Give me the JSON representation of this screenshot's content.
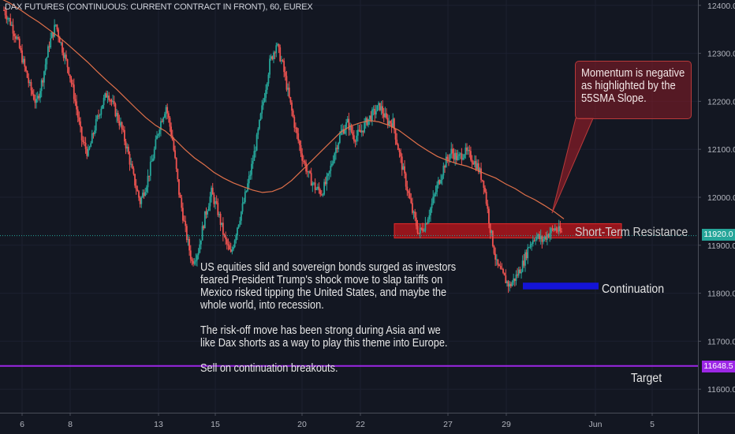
{
  "title": "DAX FUTURES (CONTINUOUS: CURRENT CONTRACT IN FRONT), 60, EUREX",
  "chart_data": {
    "type": "candlestick",
    "symbol": "DAX FUTURES (CONTINUOUS: CURRENT CONTRACT IN FRONT)",
    "interval": "60",
    "exchange": "EUREX",
    "y_axis": {
      "ticks": [
        11600.0,
        11700.0,
        11800.0,
        11900.0,
        12000.0,
        12100.0,
        12200.0,
        12300.0,
        12400.0
      ],
      "range": [
        11550,
        12415
      ],
      "position": "right"
    },
    "x_axis": {
      "ticks": [
        "6",
        "8",
        "13",
        "15",
        "20",
        "22",
        "27",
        "29",
        "Jun",
        "5"
      ]
    },
    "close_path": [
      12390,
      12365,
      12330,
      12280,
      12230,
      12195,
      12250,
      12320,
      12360,
      12310,
      12265,
      12200,
      12120,
      12090,
      12145,
      12190,
      12220,
      12185,
      12150,
      12100,
      12040,
      11990,
      12030,
      12085,
      12150,
      12190,
      12120,
      12010,
      11930,
      11865,
      11890,
      11960,
      12010,
      11970,
      11915,
      11880,
      11940,
      11990,
      12050,
      12120,
      12200,
      12280,
      12320,
      12275,
      12205,
      12140,
      12085,
      12045,
      12020,
      12010,
      12040,
      12095,
      12135,
      12155,
      12125,
      12135,
      12160,
      12175,
      12190,
      12160,
      12155,
      12090,
      12030,
      11970,
      11925,
      11945,
      11985,
      12030,
      12070,
      12095,
      12080,
      12095,
      12085,
      12065,
      12030,
      11935,
      11860,
      11835,
      11815,
      11835,
      11860,
      11900,
      11920,
      11910,
      11925,
      11935,
      11925
    ],
    "sma": {
      "name": "55SMA",
      "color": "#e0704a",
      "path": [
        12415,
        12405,
        12392,
        12378,
        12365,
        12350,
        12335,
        12318,
        12300,
        12282,
        12262,
        12243,
        12225,
        12205,
        12185,
        12166,
        12150,
        12138,
        12120,
        12100,
        12082,
        12068,
        12052,
        12040,
        12030,
        12022,
        12015,
        12010,
        12012,
        12020,
        12035,
        12055,
        12075,
        12095,
        12115,
        12135,
        12148,
        12155,
        12160,
        12157,
        12150,
        12140,
        12125,
        12110,
        12097,
        12085,
        12077,
        12070,
        12065,
        12057,
        12048,
        12040,
        12028,
        12018,
        12005,
        11995,
        11983,
        11970,
        11955
      ]
    },
    "resistance_zone": {
      "label": "Short-Term Resistance",
      "low": 11915,
      "high": 11945
    },
    "continuation_zone": {
      "label": "Continuation",
      "low": 11808,
      "high": 11822
    },
    "current_price": 11920.0,
    "target": {
      "label": "Target",
      "price": 11648.5
    }
  },
  "notes": {
    "main": "US equities slid and sovereign bonds surged as investors\nfeared President Trump's shock move to slap tariffs on\nMexico risked tipping the United States, and maybe the\nwhole world, into recession.\n\nThe risk-off move has been strong during Asia and we\nlike Dax shorts as a way to play this theme into Europe.\n\nSell on continuation breakouts.",
    "callout": "Momentum is negative\nas highlighted by the\n55SMA Slope."
  },
  "labels": {
    "resistance": "Short-Term Resistance",
    "continuation": "Continuation",
    "target": "Target"
  },
  "price_tags": {
    "current": "11920.0",
    "target": "11648.5"
  },
  "colors": {
    "background": "#131722",
    "up": "#26a69a",
    "down": "#ef5350",
    "resistance": "#c8151b",
    "continuation": "#1414d6",
    "target_line": "#9c27e6",
    "current_line": "#26a69a"
  }
}
